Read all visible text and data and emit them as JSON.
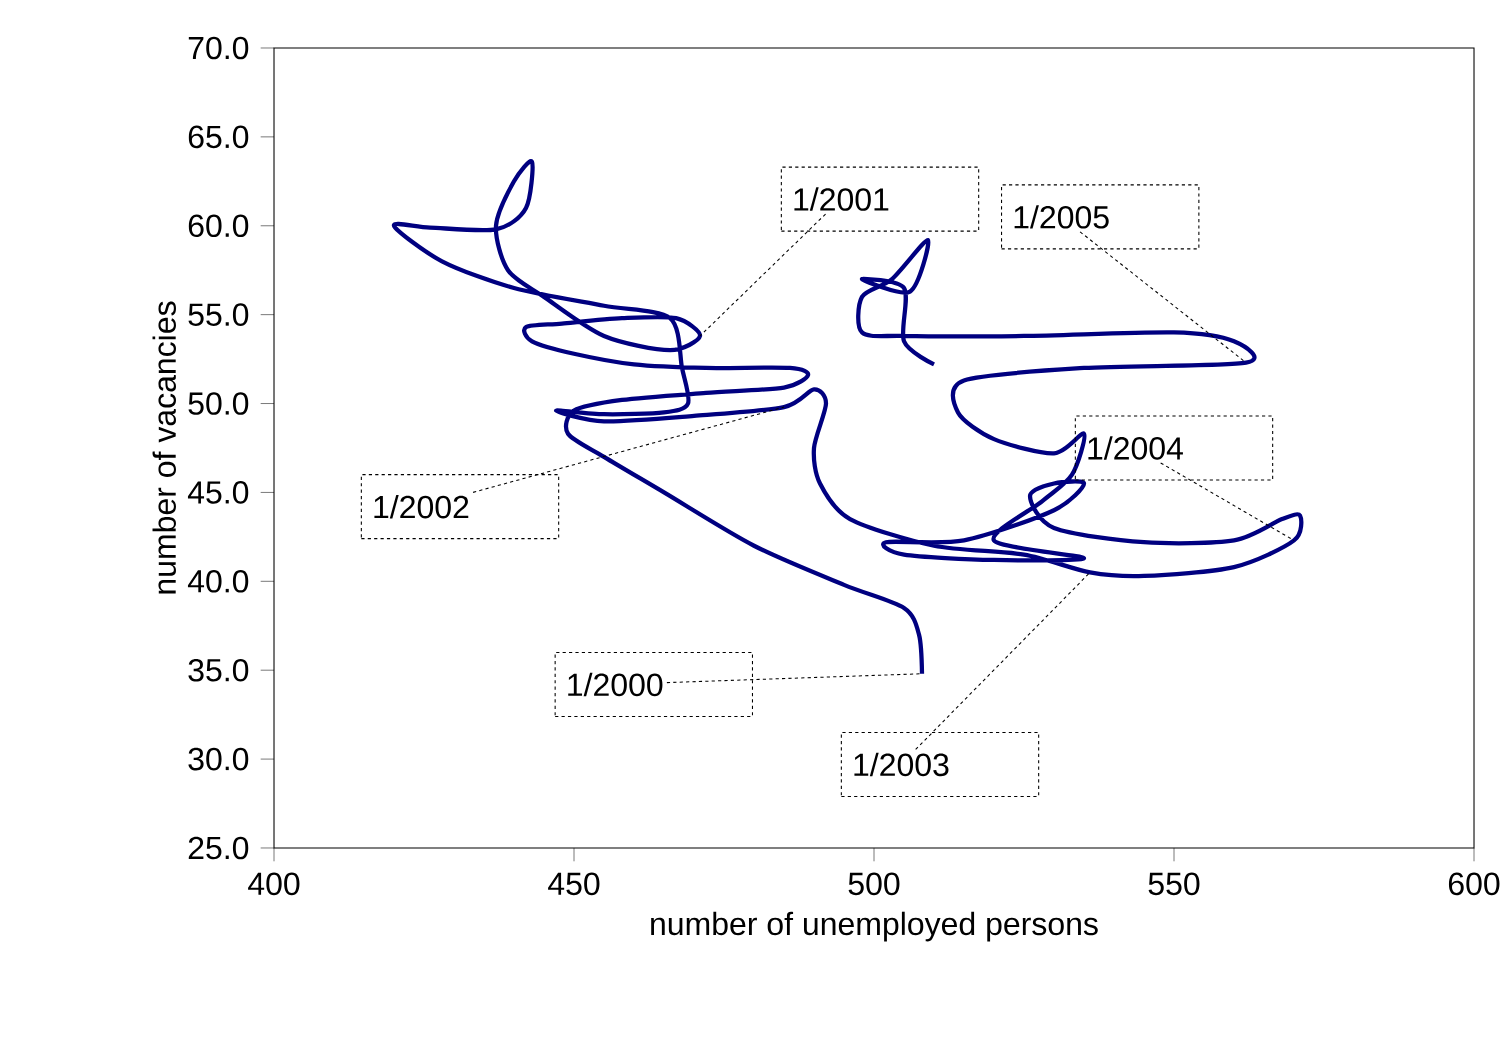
{
  "chart_data": {
    "type": "line",
    "xlabel": "number of unemployed persons",
    "ylabel": "number of vacancies",
    "xlim": [
      400,
      600
    ],
    "xticks": [
      400,
      450,
      500,
      550,
      600
    ],
    "ylim": [
      25,
      70
    ],
    "yticks": [
      {
        "value": 25,
        "label": "25.0"
      },
      {
        "value": 30,
        "label": "30.0"
      },
      {
        "value": 35,
        "label": "35.0"
      },
      {
        "value": 40,
        "label": "40.0"
      },
      {
        "value": 45,
        "label": "45.0"
      },
      {
        "value": 50,
        "label": "50.0"
      },
      {
        "value": 55,
        "label": "55.0"
      },
      {
        "value": 60,
        "label": "60.0"
      },
      {
        "value": 65,
        "label": "65.0"
      },
      {
        "value": 70,
        "label": "70.0"
      }
    ],
    "grid": false,
    "marker": "none",
    "line_style": "solid",
    "series": [
      {
        "color": "#000080",
        "x": [
          508,
          507.5,
          505,
          495,
          480,
          465,
          455,
          449,
          450,
          458,
          472,
          485,
          489,
          486,
          472,
          460,
          450,
          443,
          442,
          448,
          458,
          467,
          471,
          466,
          455,
          445,
          439,
          437,
          440,
          443,
          442,
          437,
          426,
          420,
          428,
          440,
          455,
          466,
          468,
          469,
          465,
          455,
          447,
          455,
          470,
          485,
          490,
          492,
          490,
          491,
          496,
          510,
          525,
          536,
          545,
          560,
          570,
          571,
          568,
          560,
          545,
          530,
          526,
          530,
          535,
          530,
          515,
          502,
          505,
          520,
          535,
          520,
          528,
          533,
          535,
          530,
          520,
          514,
          515,
          535,
          562,
          560,
          550,
          525,
          505,
          498,
          498,
          503,
          509,
          506,
          498,
          505,
          505,
          510
        ],
        "values": [
          34.8,
          37,
          38.5,
          39.8,
          42,
          45,
          47,
          48.3,
          49.6,
          50.2,
          50.6,
          50.9,
          51.6,
          52,
          52,
          52.2,
          52.8,
          53.5,
          54.3,
          54.5,
          54.8,
          54.8,
          53.8,
          53,
          53.8,
          56,
          57.5,
          60,
          62.5,
          63.6,
          61,
          59.8,
          59.9,
          60,
          58,
          56.5,
          55.5,
          54.8,
          52,
          50,
          49.5,
          49.4,
          49.6,
          49,
          49.3,
          49.8,
          50.8,
          50,
          47.5,
          45.5,
          43.5,
          42,
          41.5,
          40.5,
          40.3,
          40.8,
          42.3,
          43.7,
          43.5,
          42.3,
          42.2,
          43,
          44.8,
          45.5,
          45.5,
          44,
          42.3,
          42.2,
          41.5,
          41.2,
          41.3,
          42.3,
          44.5,
          46,
          48.3,
          47.2,
          48,
          49.5,
          51.3,
          52,
          52.3,
          53.5,
          54,
          53.8,
          53.8,
          54,
          56,
          57,
          59.2,
          56.3,
          57,
          56.5,
          53.5,
          52.2
        ]
      }
    ],
    "annotations": [
      {
        "text": "1/2001",
        "x": 471,
        "y": 53.8
      },
      {
        "text": "1/2005",
        "x": 562,
        "y": 52.3
      },
      {
        "text": "1/2004",
        "x": 570,
        "y": 42.3
      },
      {
        "text": "1/2002",
        "x": 485,
        "y": 49.8
      },
      {
        "text": "1/2000",
        "x": 508,
        "y": 34.8
      },
      {
        "text": "1/2003",
        "x": 536,
        "y": 40.5
      }
    ]
  }
}
